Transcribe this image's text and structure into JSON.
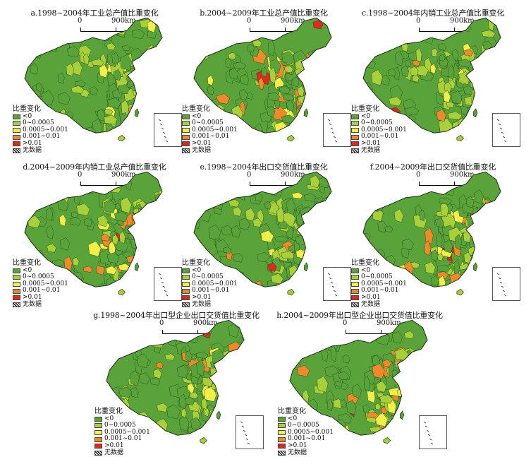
{
  "legend": {
    "title": "比重变化",
    "classes": [
      {
        "label": "<0",
        "color": "#5aa23a"
      },
      {
        "label": "0~0.0005",
        "color": "#a9cf3b"
      },
      {
        "label": "0.0005~0.001",
        "color": "#f4ee4a"
      },
      {
        "label": "0.001~0.01",
        "color": "#ee8a2b"
      },
      {
        "label": ">0.01",
        "color": "#dd2a1c"
      }
    ],
    "nodata": {
      "label": "无数据",
      "pattern": "hatch"
    }
  },
  "scale": {
    "zero": "0",
    "distance": "900km"
  },
  "panels": [
    {
      "title": "a.1998~2004年工业总产值比重变化",
      "mix": [
        0.58,
        0.3,
        0.06,
        0.05,
        0.01
      ]
    },
    {
      "title": "b.2004~2009年工业总产值比重变化",
      "mix": [
        0.5,
        0.2,
        0.12,
        0.16,
        0.02
      ]
    },
    {
      "title": "c.1998~2004年内销工业总产值比重变化",
      "mix": [
        0.55,
        0.32,
        0.06,
        0.06,
        0.01
      ]
    },
    {
      "title": "d.2004~2009年内销工业总产值比重变化",
      "mix": [
        0.5,
        0.22,
        0.12,
        0.14,
        0.02
      ]
    },
    {
      "title": "e.1998~2004年出口交货值比重变化",
      "mix": [
        0.6,
        0.26,
        0.07,
        0.06,
        0.01
      ]
    },
    {
      "title": "f.2004~2009年出口交货值比重变化",
      "mix": [
        0.55,
        0.22,
        0.08,
        0.13,
        0.02
      ]
    },
    {
      "title": "g.1998~2004年出口型企业出口交货值比重变化",
      "mix": [
        0.6,
        0.27,
        0.07,
        0.05,
        0.01
      ]
    },
    {
      "title": "h.2004~2009年出口型企业出口交货值比重变化",
      "mix": [
        0.55,
        0.2,
        0.1,
        0.13,
        0.02
      ]
    }
  ]
}
